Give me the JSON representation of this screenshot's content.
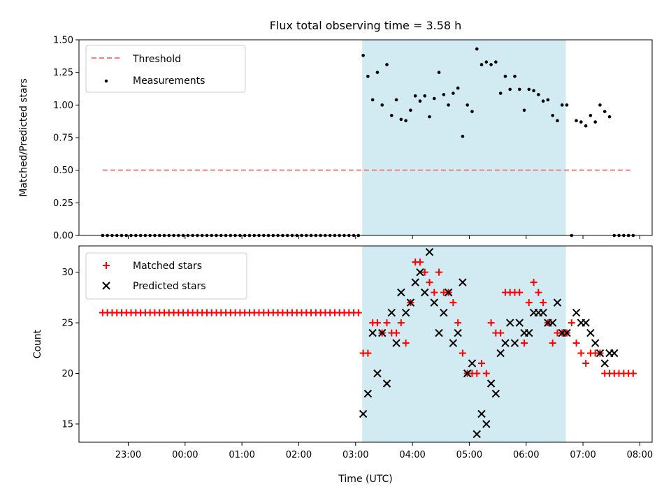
{
  "chart_data": {
    "title": "Flux total observing time = 3.58 h",
    "xlabel": "Time (UTC)",
    "x_ticks": [
      "23:00",
      "00:00",
      "01:00",
      "02:00",
      "03:00",
      "04:00",
      "05:00",
      "06:00",
      "07:00",
      "08:00"
    ],
    "shaded_region": {
      "start": "03:07",
      "end": "06:42",
      "color": "#add8e6"
    },
    "panels": [
      {
        "type": "scatter",
        "ylabel": "Matched/Predicted stars",
        "ylim": [
          0,
          1.5
        ],
        "y_ticks": [
          "0.00",
          "0.25",
          "0.50",
          "0.75",
          "1.00",
          "1.25",
          "1.50"
        ],
        "legend": {
          "placement": "upper-left",
          "entries": [
            "Threshold",
            "Measurements"
          ]
        },
        "threshold": {
          "name": "Threshold",
          "value": 0.5,
          "x_range": [
            "22:33",
            "07:53"
          ],
          "color": "#f08080",
          "style": "dashed"
        },
        "measurements": {
          "name": "Measurements",
          "color": "#000000",
          "x": [
            "22:33",
            "22:38",
            "22:43",
            "22:48",
            "22:53",
            "22:58",
            "23:03",
            "23:08",
            "23:13",
            "23:18",
            "23:23",
            "23:28",
            "23:33",
            "23:38",
            "23:43",
            "23:48",
            "23:53",
            "23:58",
            "00:03",
            "00:08",
            "00:13",
            "00:18",
            "00:23",
            "00:28",
            "00:33",
            "00:38",
            "00:43",
            "00:48",
            "00:53",
            "00:58",
            "01:03",
            "01:08",
            "01:13",
            "01:18",
            "01:23",
            "01:28",
            "01:33",
            "01:38",
            "01:43",
            "01:48",
            "01:53",
            "01:58",
            "02:03",
            "02:08",
            "02:13",
            "02:18",
            "02:23",
            "02:28",
            "02:33",
            "02:38",
            "02:43",
            "02:48",
            "02:53",
            "02:58",
            "03:03",
            "03:08",
            "03:13",
            "03:18",
            "03:23",
            "03:28",
            "03:33",
            "03:38",
            "03:43",
            "03:48",
            "03:53",
            "03:58",
            "04:03",
            "04:08",
            "04:13",
            "04:18",
            "04:23",
            "04:28",
            "04:33",
            "04:38",
            "04:43",
            "04:48",
            "04:53",
            "04:58",
            "05:03",
            "05:08",
            "05:13",
            "05:18",
            "05:23",
            "05:28",
            "05:33",
            "05:38",
            "05:43",
            "05:48",
            "05:53",
            "05:58",
            "06:03",
            "06:08",
            "06:13",
            "06:18",
            "06:23",
            "06:28",
            "06:33",
            "06:38",
            "06:43",
            "06:48",
            "06:53",
            "06:58",
            "07:03",
            "07:08",
            "07:13",
            "07:18",
            "07:23",
            "07:28",
            "07:33",
            "07:38",
            "07:43",
            "07:48",
            "07:53"
          ],
          "y": [
            0,
            0,
            0,
            0,
            0,
            0,
            0,
            0,
            0,
            0,
            0,
            0,
            0,
            0,
            0,
            0,
            0,
            0,
            0,
            0,
            0,
            0,
            0,
            0,
            0,
            0,
            0,
            0,
            0,
            0,
            0,
            0,
            0,
            0,
            0,
            0,
            0,
            0,
            0,
            0,
            0,
            0,
            0,
            0,
            0,
            0,
            0,
            0,
            0,
            0,
            0,
            0,
            0,
            0,
            0,
            1.38,
            1.22,
            1.04,
            1.25,
            1.0,
            1.31,
            0.92,
            1.04,
            0.89,
            0.88,
            0.96,
            1.07,
            1.03,
            1.07,
            0.91,
            1.05,
            1.25,
            1.08,
            1.0,
            1.09,
            1.13,
            0.76,
            1.0,
            0.95,
            1.43,
            1.31,
            1.33,
            1.31,
            1.33,
            1.09,
            1.22,
            1.12,
            1.22,
            1.12,
            0.96,
            1.12,
            1.11,
            1.08,
            1.03,
            1.04,
            0.92,
            0.88,
            1.0,
            1.0,
            0,
            0.88,
            0.87,
            0.84,
            0.92,
            0.87,
            1.0,
            0.95,
            0.91,
            0,
            0,
            0,
            0,
            0
          ]
        }
      },
      {
        "type": "scatter",
        "ylabel": "Count",
        "ylim": [
          13.2,
          32.6
        ],
        "y_ticks": [
          "15",
          "20",
          "25",
          "30"
        ],
        "legend": {
          "placement": "upper-left",
          "entries": [
            "Matched stars",
            "Predicted stars"
          ]
        },
        "series": [
          {
            "name": "Matched stars",
            "marker": "+",
            "color": "#ff0000",
            "x": [
              "22:33",
              "22:38",
              "22:43",
              "22:48",
              "22:53",
              "22:58",
              "23:03",
              "23:08",
              "23:13",
              "23:18",
              "23:23",
              "23:28",
              "23:33",
              "23:38",
              "23:43",
              "23:48",
              "23:53",
              "23:58",
              "00:03",
              "00:08",
              "00:13",
              "00:18",
              "00:23",
              "00:28",
              "00:33",
              "00:38",
              "00:43",
              "00:48",
              "00:53",
              "00:58",
              "01:03",
              "01:08",
              "01:13",
              "01:18",
              "01:23",
              "01:28",
              "01:33",
              "01:38",
              "01:43",
              "01:48",
              "01:53",
              "01:58",
              "02:03",
              "02:08",
              "02:13",
              "02:18",
              "02:23",
              "02:28",
              "02:33",
              "02:38",
              "02:43",
              "02:48",
              "02:53",
              "02:58",
              "03:03",
              "03:08",
              "03:13",
              "03:18",
              "03:23",
              "03:28",
              "03:33",
              "03:38",
              "03:43",
              "03:48",
              "03:53",
              "03:58",
              "04:03",
              "04:08",
              "04:13",
              "04:18",
              "04:23",
              "04:28",
              "04:33",
              "04:38",
              "04:43",
              "04:48",
              "04:53",
              "04:58",
              "05:03",
              "05:08",
              "05:13",
              "05:18",
              "05:23",
              "05:28",
              "05:33",
              "05:38",
              "05:43",
              "05:48",
              "05:53",
              "05:58",
              "06:03",
              "06:08",
              "06:13",
              "06:18",
              "06:23",
              "06:28",
              "06:33",
              "06:38",
              "06:43",
              "06:48",
              "06:53",
              "06:58",
              "07:03",
              "07:08",
              "07:13",
              "07:18",
              "07:23",
              "07:28",
              "07:33",
              "07:38",
              "07:43",
              "07:48",
              "07:53"
            ],
            "y": [
              26,
              26,
              26,
              26,
              26,
              26,
              26,
              26,
              26,
              26,
              26,
              26,
              26,
              26,
              26,
              26,
              26,
              26,
              26,
              26,
              26,
              26,
              26,
              26,
              26,
              26,
              26,
              26,
              26,
              26,
              26,
              26,
              26,
              26,
              26,
              26,
              26,
              26,
              26,
              26,
              26,
              26,
              26,
              26,
              26,
              26,
              26,
              26,
              26,
              26,
              26,
              26,
              26,
              26,
              26,
              22,
              22,
              25,
              25,
              24,
              25,
              24,
              24,
              25,
              23,
              27,
              31,
              31,
              30,
              29,
              28,
              30,
              28,
              28,
              27,
              25,
              22,
              20,
              20,
              20,
              21,
              20,
              25,
              24,
              24,
              28,
              28,
              28,
              28,
              23,
              27,
              29,
              28,
              27,
              25,
              23,
              24,
              24,
              24,
              25,
              23,
              22,
              21,
              22,
              22,
              22,
              20,
              20,
              20,
              20,
              20,
              20,
              20
            ]
          },
          {
            "name": "Predicted stars",
            "marker": "x",
            "color": "#000000",
            "x": [
              "03:08",
              "03:13",
              "03:18",
              "03:23",
              "03:28",
              "03:33",
              "03:38",
              "03:43",
              "03:48",
              "03:53",
              "03:58",
              "04:03",
              "04:08",
              "04:13",
              "04:18",
              "04:23",
              "04:28",
              "04:33",
              "04:38",
              "04:43",
              "04:48",
              "04:53",
              "04:58",
              "05:03",
              "05:08",
              "05:13",
              "05:18",
              "05:23",
              "05:28",
              "05:33",
              "05:38",
              "05:43",
              "05:48",
              "05:53",
              "05:58",
              "06:03",
              "06:08",
              "06:13",
              "06:18",
              "06:23",
              "06:28",
              "06:33",
              "06:38",
              "06:43",
              "06:53",
              "06:58",
              "07:03",
              "07:08",
              "07:13",
              "07:18",
              "07:23",
              "07:28",
              "07:33"
            ],
            "y": [
              16,
              18,
              24,
              20,
              24,
              19,
              26,
              23,
              28,
              26,
              27,
              29,
              30,
              28,
              32,
              27,
              24,
              26,
              28,
              23,
              24,
              29,
              20,
              21,
              14,
              16,
              15,
              19,
              18,
              22,
              23,
              25,
              23,
              25,
              24,
              24,
              26,
              26,
              26,
              25,
              25,
              27,
              24,
              24,
              26,
              25,
              25,
              24,
              23,
              22,
              21,
              22,
              22
            ]
          }
        ]
      }
    ]
  }
}
